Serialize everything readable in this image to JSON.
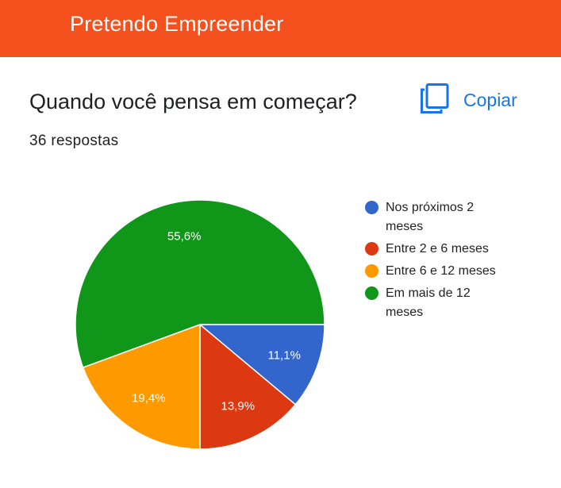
{
  "header": {
    "title": "Pretendo Empreender",
    "color": "#f4511e"
  },
  "question": {
    "title": "Quando você pensa em começar?",
    "responses": "36 respostas",
    "copy_label": "Copiar",
    "copy_icon": "copy-icon"
  },
  "chart_data": {
    "type": "pie",
    "total": 36,
    "slices": [
      {
        "label": "Nos próximos 2 meses",
        "value": 11.1,
        "display": "11,1%",
        "color": "#3366cc"
      },
      {
        "label": "Entre 2 e 6 meses",
        "value": 13.9,
        "display": "13,9%",
        "color": "#dc3912"
      },
      {
        "label": "Entre 6 e 12 meses",
        "value": 19.4,
        "display": "19,4%",
        "color": "#ff9900"
      },
      {
        "label": "Em mais de 12 meses",
        "value": 55.6,
        "display": "55,6%",
        "color": "#109618"
      }
    ],
    "start_angle": "3 o'clock",
    "direction": "clockwise",
    "legend_position": "right"
  }
}
